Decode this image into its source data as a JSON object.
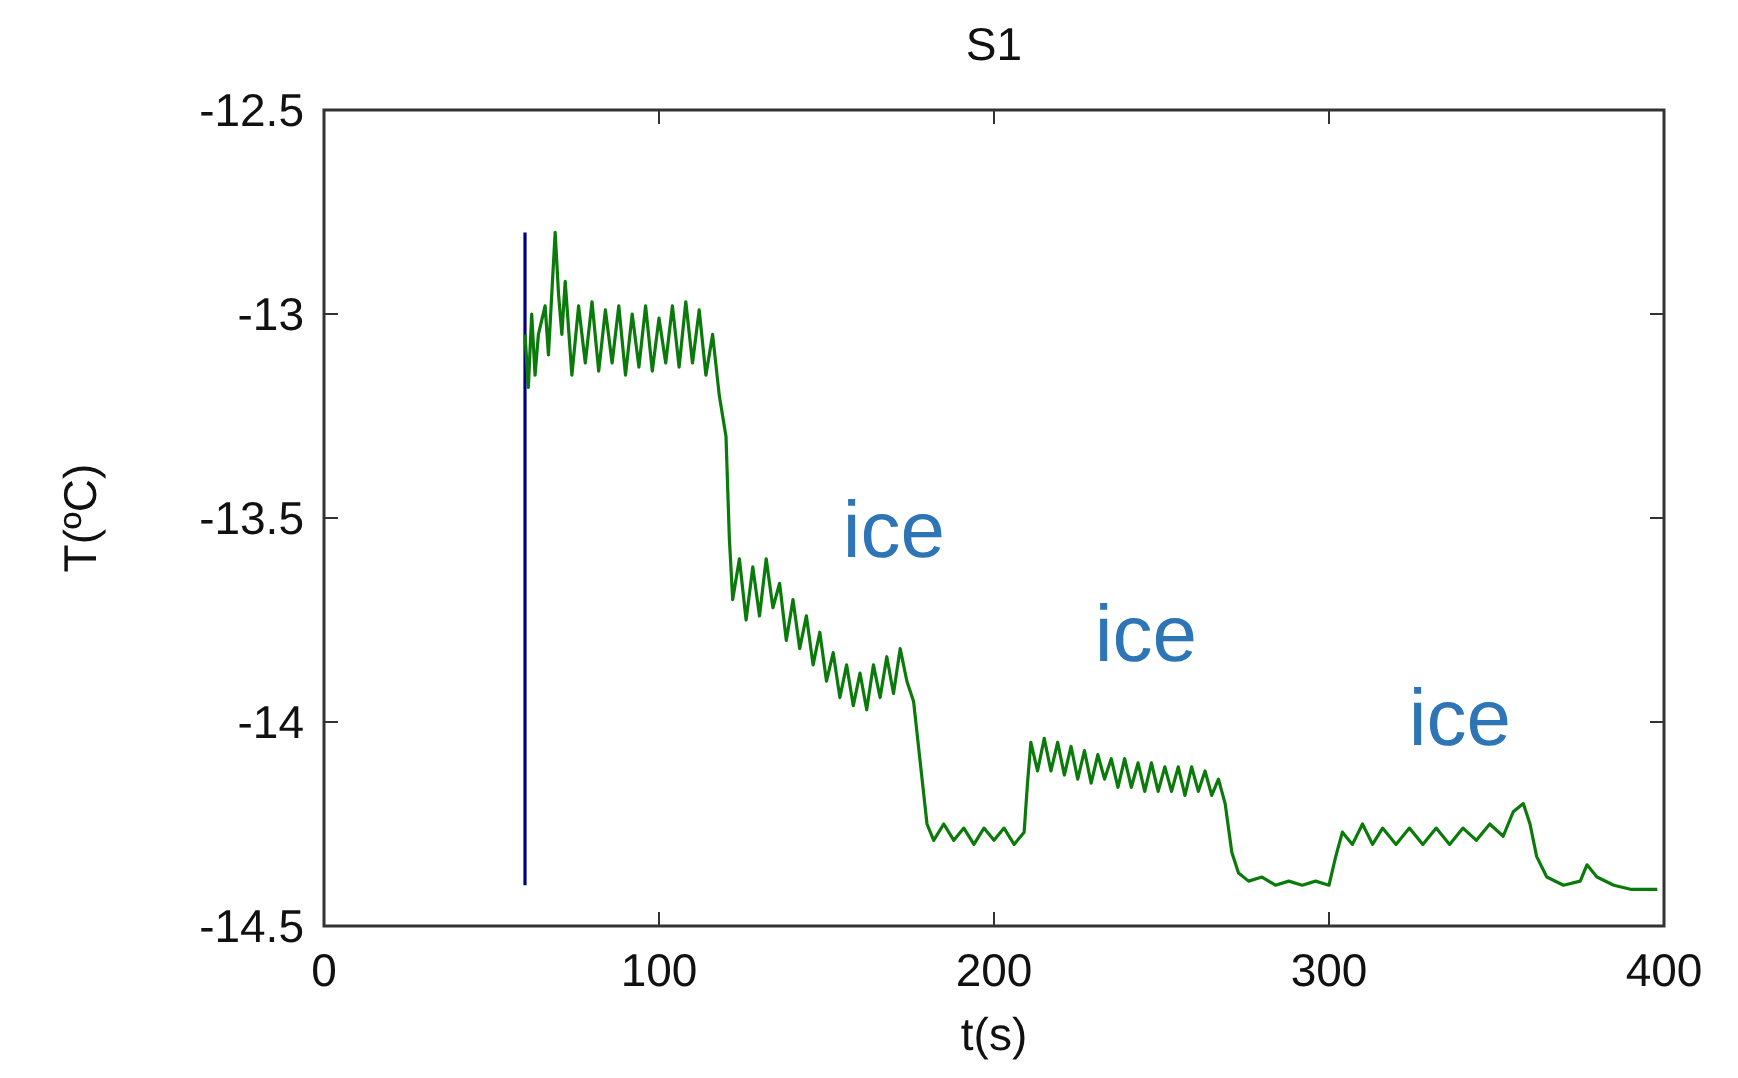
{
  "chart_data": {
    "type": "line",
    "title": "S1",
    "xlabel": "t(s)",
    "ylabel": "T(ºC)",
    "xlim": [
      0,
      400
    ],
    "xticks": [
      0,
      100,
      200,
      300,
      400
    ],
    "ylim": [
      -14.5,
      -12.5
    ],
    "yticks": [
      -14.5,
      -14,
      -13.5,
      -13,
      -12.5
    ],
    "grid": false,
    "annotations": [
      "ice",
      "ice",
      "ice"
    ],
    "series": [
      {
        "color": "#000080",
        "x": [
          60,
          60
        ],
        "values": [
          -12.8,
          -14.4
        ]
      },
      {
        "color": "#0a7a0a",
        "x": [
          60,
          61,
          62,
          63,
          64,
          66,
          67,
          68,
          69,
          70,
          71,
          72,
          74,
          76,
          78,
          80,
          82,
          84,
          86,
          88,
          90,
          92,
          94,
          96,
          98,
          100,
          102,
          104,
          106,
          108,
          110,
          112,
          114,
          116,
          118,
          120,
          121,
          122,
          124,
          126,
          128,
          130,
          132,
          134,
          136,
          138,
          140,
          142,
          144,
          146,
          148,
          150,
          152,
          154,
          156,
          158,
          160,
          162,
          164,
          166,
          168,
          170,
          172,
          174,
          176,
          178,
          180,
          182,
          185,
          188,
          191,
          194,
          197,
          200,
          203,
          206,
          209,
          210,
          211,
          213,
          215,
          217,
          219,
          221,
          223,
          225,
          227,
          229,
          231,
          233,
          235,
          237,
          239,
          241,
          243,
          245,
          247,
          249,
          251,
          253,
          255,
          257,
          259,
          261,
          263,
          265,
          267,
          269,
          271,
          273,
          276,
          280,
          284,
          288,
          292,
          296,
          300,
          302,
          304,
          307,
          310,
          313,
          316,
          320,
          324,
          328,
          332,
          336,
          340,
          344,
          348,
          352,
          355,
          358,
          360,
          362,
          365,
          370,
          375,
          377,
          380,
          385,
          390,
          398
        ],
        "values": [
          -13.05,
          -13.18,
          -13.0,
          -13.15,
          -13.05,
          -12.98,
          -13.1,
          -12.95,
          -12.8,
          -12.95,
          -13.05,
          -12.92,
          -13.15,
          -12.98,
          -13.12,
          -12.97,
          -13.14,
          -12.99,
          -13.12,
          -12.98,
          -13.15,
          -13.0,
          -13.13,
          -12.98,
          -13.14,
          -13.01,
          -13.12,
          -12.98,
          -13.13,
          -12.97,
          -13.12,
          -12.99,
          -13.15,
          -13.05,
          -13.2,
          -13.3,
          -13.55,
          -13.7,
          -13.6,
          -13.75,
          -13.62,
          -13.74,
          -13.6,
          -13.72,
          -13.66,
          -13.8,
          -13.7,
          -13.82,
          -13.74,
          -13.86,
          -13.78,
          -13.9,
          -13.83,
          -13.94,
          -13.86,
          -13.96,
          -13.88,
          -13.97,
          -13.86,
          -13.94,
          -13.84,
          -13.93,
          -13.82,
          -13.9,
          -13.95,
          -14.1,
          -14.25,
          -14.29,
          -14.25,
          -14.29,
          -14.26,
          -14.3,
          -14.26,
          -14.29,
          -14.26,
          -14.3,
          -14.27,
          -14.15,
          -14.05,
          -14.12,
          -14.04,
          -14.12,
          -14.05,
          -14.13,
          -14.06,
          -14.14,
          -14.07,
          -14.15,
          -14.08,
          -14.14,
          -14.09,
          -14.16,
          -14.09,
          -14.16,
          -14.1,
          -14.17,
          -14.1,
          -14.17,
          -14.11,
          -14.17,
          -14.11,
          -14.18,
          -14.11,
          -14.17,
          -14.12,
          -14.18,
          -14.14,
          -14.2,
          -14.32,
          -14.37,
          -14.39,
          -14.38,
          -14.4,
          -14.39,
          -14.4,
          -14.39,
          -14.4,
          -14.33,
          -14.27,
          -14.3,
          -14.25,
          -14.3,
          -14.26,
          -14.3,
          -14.26,
          -14.3,
          -14.26,
          -14.3,
          -14.26,
          -14.29,
          -14.25,
          -14.28,
          -14.22,
          -14.2,
          -14.25,
          -14.33,
          -14.38,
          -14.4,
          -14.39,
          -14.35,
          -14.38,
          -14.4,
          -14.41,
          -14.41
        ]
      }
    ]
  }
}
